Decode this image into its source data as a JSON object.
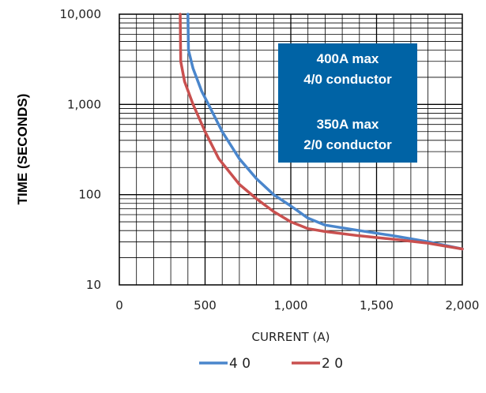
{
  "chart_data": {
    "type": "line",
    "xlabel": "CURRENT (A)",
    "ylabel": "TIME (SECONDS)",
    "xlim": [
      0,
      2000
    ],
    "ylim": [
      10,
      10000
    ],
    "y_scale": "log",
    "grid": true,
    "legend_position": "bottom",
    "x_ticks": [
      0,
      500,
      1000,
      1500,
      2000
    ],
    "x_tick_labels": [
      "0",
      "500",
      "1,000",
      "1,500",
      "2,000"
    ],
    "y_ticks": [
      10,
      100,
      1000,
      10000
    ],
    "y_tick_labels": [
      "10",
      "100",
      "1,000",
      "10,000"
    ],
    "annotation": {
      "lines": [
        "400A max",
        "4/0 conductor",
        "",
        "350A max",
        "2/0 conductor"
      ],
      "background": "#0063a5",
      "text_color": "#ffffff"
    },
    "series": [
      {
        "name": "4 0",
        "color": "#4a86cc",
        "points": [
          [
            400,
            10000
          ],
          [
            403,
            4000
          ],
          [
            430,
            2500
          ],
          [
            480,
            1400
          ],
          [
            520,
            1000
          ],
          [
            600,
            500
          ],
          [
            700,
            250
          ],
          [
            800,
            150
          ],
          [
            900,
            100
          ],
          [
            1000,
            75
          ],
          [
            1100,
            55
          ],
          [
            1200,
            46
          ],
          [
            1400,
            40
          ],
          [
            1600,
            35
          ],
          [
            1800,
            30
          ],
          [
            2000,
            25
          ]
        ]
      },
      {
        "name": "2 0",
        "color": "#c9504f",
        "points": [
          [
            355,
            10000
          ],
          [
            358,
            3000
          ],
          [
            380,
            1800
          ],
          [
            430,
            1000
          ],
          [
            500,
            500
          ],
          [
            580,
            250
          ],
          [
            700,
            130
          ],
          [
            800,
            90
          ],
          [
            900,
            65
          ],
          [
            1000,
            50
          ],
          [
            1100,
            42
          ],
          [
            1200,
            39
          ],
          [
            1400,
            35
          ],
          [
            1600,
            32
          ],
          [
            1800,
            29
          ],
          [
            2000,
            25
          ]
        ]
      }
    ]
  }
}
